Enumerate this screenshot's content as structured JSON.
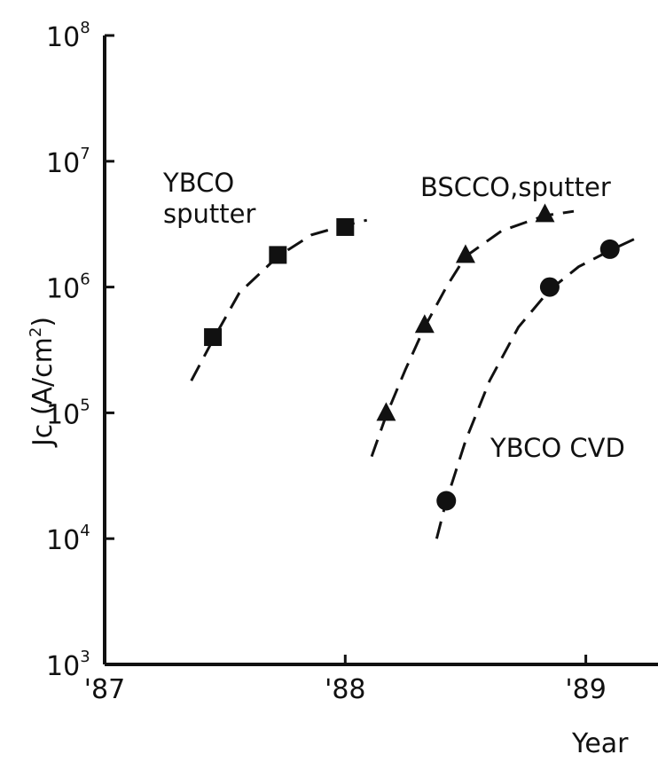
{
  "chart_data": {
    "type": "scatter",
    "title": "",
    "xlabel": "Year",
    "ylabel": "Jc (A/cm²)",
    "ylabel_parts": {
      "base": "Jc (A/cm",
      "sup": "2",
      "close": ")"
    },
    "yscale": "log",
    "xlim": [
      1987.0,
      1989.3
    ],
    "ylim": [
      1000,
      100000000
    ],
    "x_ticks": [
      {
        "value": 1987.0,
        "label": "'87"
      },
      {
        "value": 1988.0,
        "label": "'88"
      },
      {
        "value": 1989.0,
        "label": "'89"
      }
    ],
    "y_ticks": [
      {
        "value": 1000,
        "base": "10",
        "exp": "3"
      },
      {
        "value": 10000,
        "base": "10",
        "exp": "4"
      },
      {
        "value": 100000,
        "base": "10",
        "exp": "5"
      },
      {
        "value": 1000000,
        "base": "10",
        "exp": "6"
      },
      {
        "value": 10000000,
        "base": "10",
        "exp": "7"
      },
      {
        "value": 100000000,
        "base": "10",
        "exp": "8"
      }
    ],
    "grid": false,
    "series": [
      {
        "name": "YBCO sputter",
        "label_lines": [
          "YBCO",
          "sputter"
        ],
        "marker": "square",
        "points": [
          {
            "x": 1987.45,
            "y": 400000
          },
          {
            "x": 1987.72,
            "y": 1800000
          },
          {
            "x": 1988.0,
            "y": 3000000
          }
        ],
        "trend": [
          [
            1987.36,
            180000
          ],
          [
            1987.45,
            380000
          ],
          [
            1987.56,
            900000
          ],
          [
            1987.72,
            1750000
          ],
          [
            1987.86,
            2600000
          ],
          [
            1988.0,
            3100000
          ],
          [
            1988.09,
            3400000
          ]
        ]
      },
      {
        "name": "BSCCO,sputter",
        "label_lines": [
          "BSCCO,sputter"
        ],
        "marker": "triangle",
        "points": [
          {
            "x": 1988.17,
            "y": 100000
          },
          {
            "x": 1988.33,
            "y": 500000
          },
          {
            "x": 1988.5,
            "y": 1800000
          },
          {
            "x": 1988.83,
            "y": 3800000
          }
        ],
        "trend": [
          [
            1988.11,
            45000
          ],
          [
            1988.17,
            95000
          ],
          [
            1988.25,
            220000
          ],
          [
            1988.33,
            480000
          ],
          [
            1988.42,
            1000000
          ],
          [
            1988.5,
            1750000
          ],
          [
            1988.65,
            2800000
          ],
          [
            1988.83,
            3700000
          ],
          [
            1988.95,
            4000000
          ]
        ]
      },
      {
        "name": "YBCO CVD",
        "label_lines": [
          "YBCO CVD"
        ],
        "marker": "circle",
        "points": [
          {
            "x": 1988.42,
            "y": 20000
          },
          {
            "x": 1988.85,
            "y": 1000000
          },
          {
            "x": 1989.1,
            "y": 2000000
          }
        ],
        "trend": [
          [
            1988.38,
            10000
          ],
          [
            1988.42,
            20000
          ],
          [
            1988.5,
            60000
          ],
          [
            1988.6,
            180000
          ],
          [
            1988.72,
            480000
          ],
          [
            1988.85,
            950000
          ],
          [
            1988.97,
            1450000
          ],
          [
            1989.1,
            1950000
          ],
          [
            1989.2,
            2400000
          ]
        ]
      }
    ]
  }
}
